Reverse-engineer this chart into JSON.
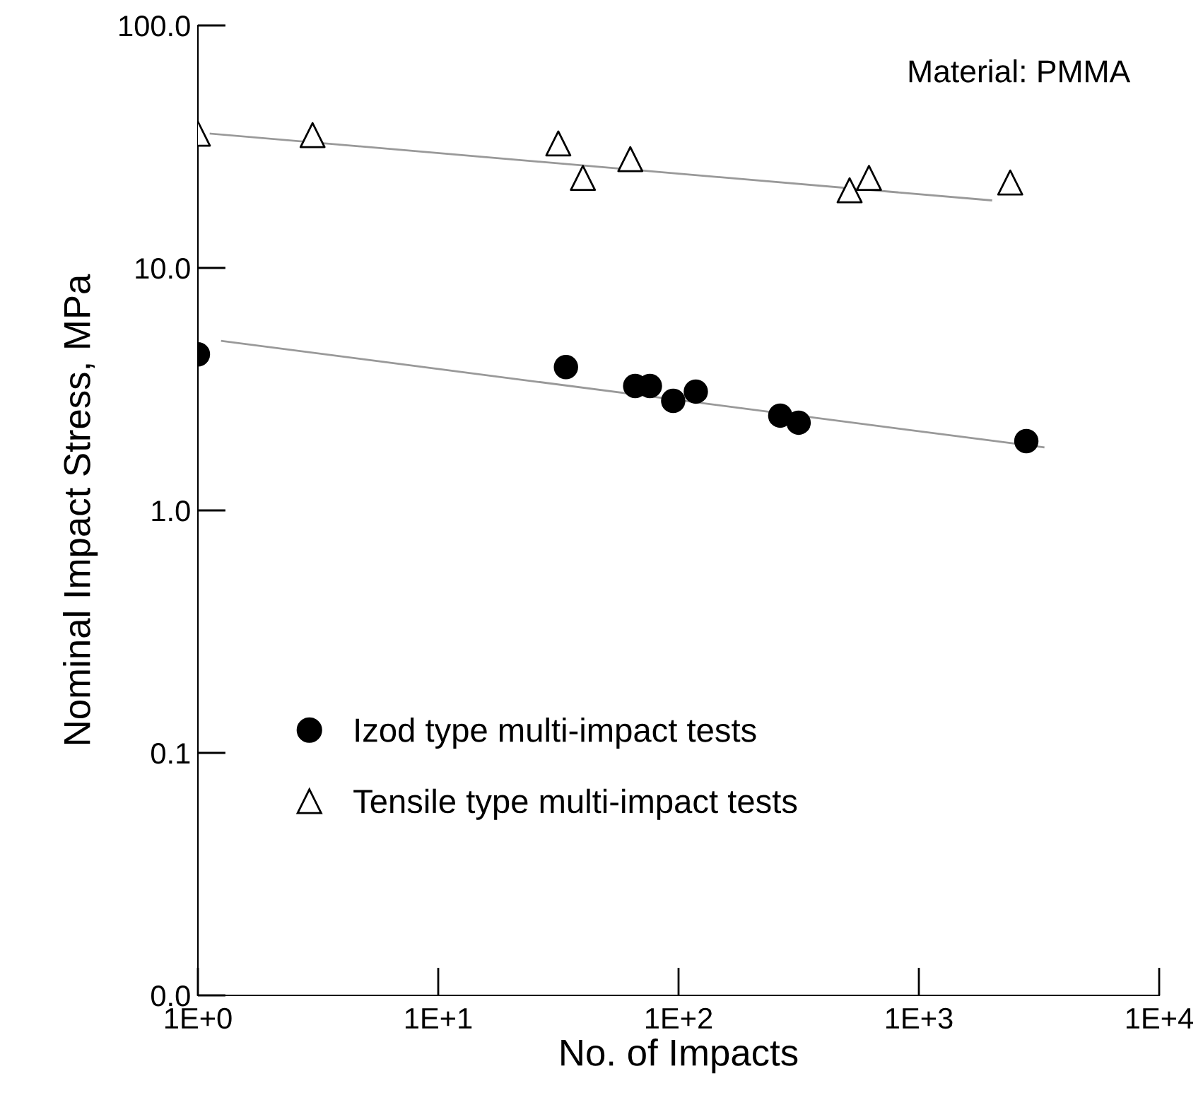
{
  "chart_data": {
    "type": "scatter",
    "xlabel": "No. of Impacts",
    "ylabel": "Nominal Impact Stress, MPa",
    "annotations": [
      "Material: PMMA"
    ],
    "log": "xy",
    "grid": false,
    "legend": "bottom left",
    "xlim": [
      1,
      10000
    ],
    "xticks": [
      {
        "value": 1,
        "label": "1E+0"
      },
      {
        "value": 10,
        "label": "1E+1"
      },
      {
        "value": 100,
        "label": "1E+2"
      },
      {
        "value": 1000,
        "label": "1E+3"
      },
      {
        "value": 10000,
        "label": "1E+4"
      }
    ],
    "ylim": [
      0.01,
      100
    ],
    "yticks": [
      {
        "value": 0.01,
        "label": "0.0"
      },
      {
        "value": 0.1,
        "label": "0.1"
      },
      {
        "value": 1,
        "label": "1.0"
      },
      {
        "value": 10,
        "label": "10.0"
      },
      {
        "value": 100,
        "label": "100.0"
      }
    ],
    "series": [
      {
        "name": "Izod type multi-impact tests",
        "color": "#000000",
        "marker": "circle",
        "x": [
          1,
          34,
          66,
          76,
          95,
          118,
          265,
          316,
          2800
        ],
        "values": [
          4.4,
          3.9,
          3.26,
          3.26,
          2.83,
          3.09,
          2.46,
          2.3,
          1.93
        ]
      },
      {
        "name": "Tensile type multi-impact tests",
        "color": "#000000",
        "marker": "triangle",
        "x": [
          1,
          3,
          31.6,
          40,
          63,
          515,
          620,
          2400
        ],
        "values": [
          35.8,
          35.3,
          32.6,
          23.5,
          28.1,
          20.9,
          23.5,
          22.5
        ]
      },
      {
        "type": "line",
        "color": "#999999",
        "x": [
          1.26,
          3300
        ],
        "values": [
          5.0,
          1.82
        ]
      },
      {
        "type": "line",
        "color": "#999999",
        "x": [
          1.13,
          2000
        ],
        "values": [
          35.8,
          19.0
        ]
      }
    ]
  }
}
